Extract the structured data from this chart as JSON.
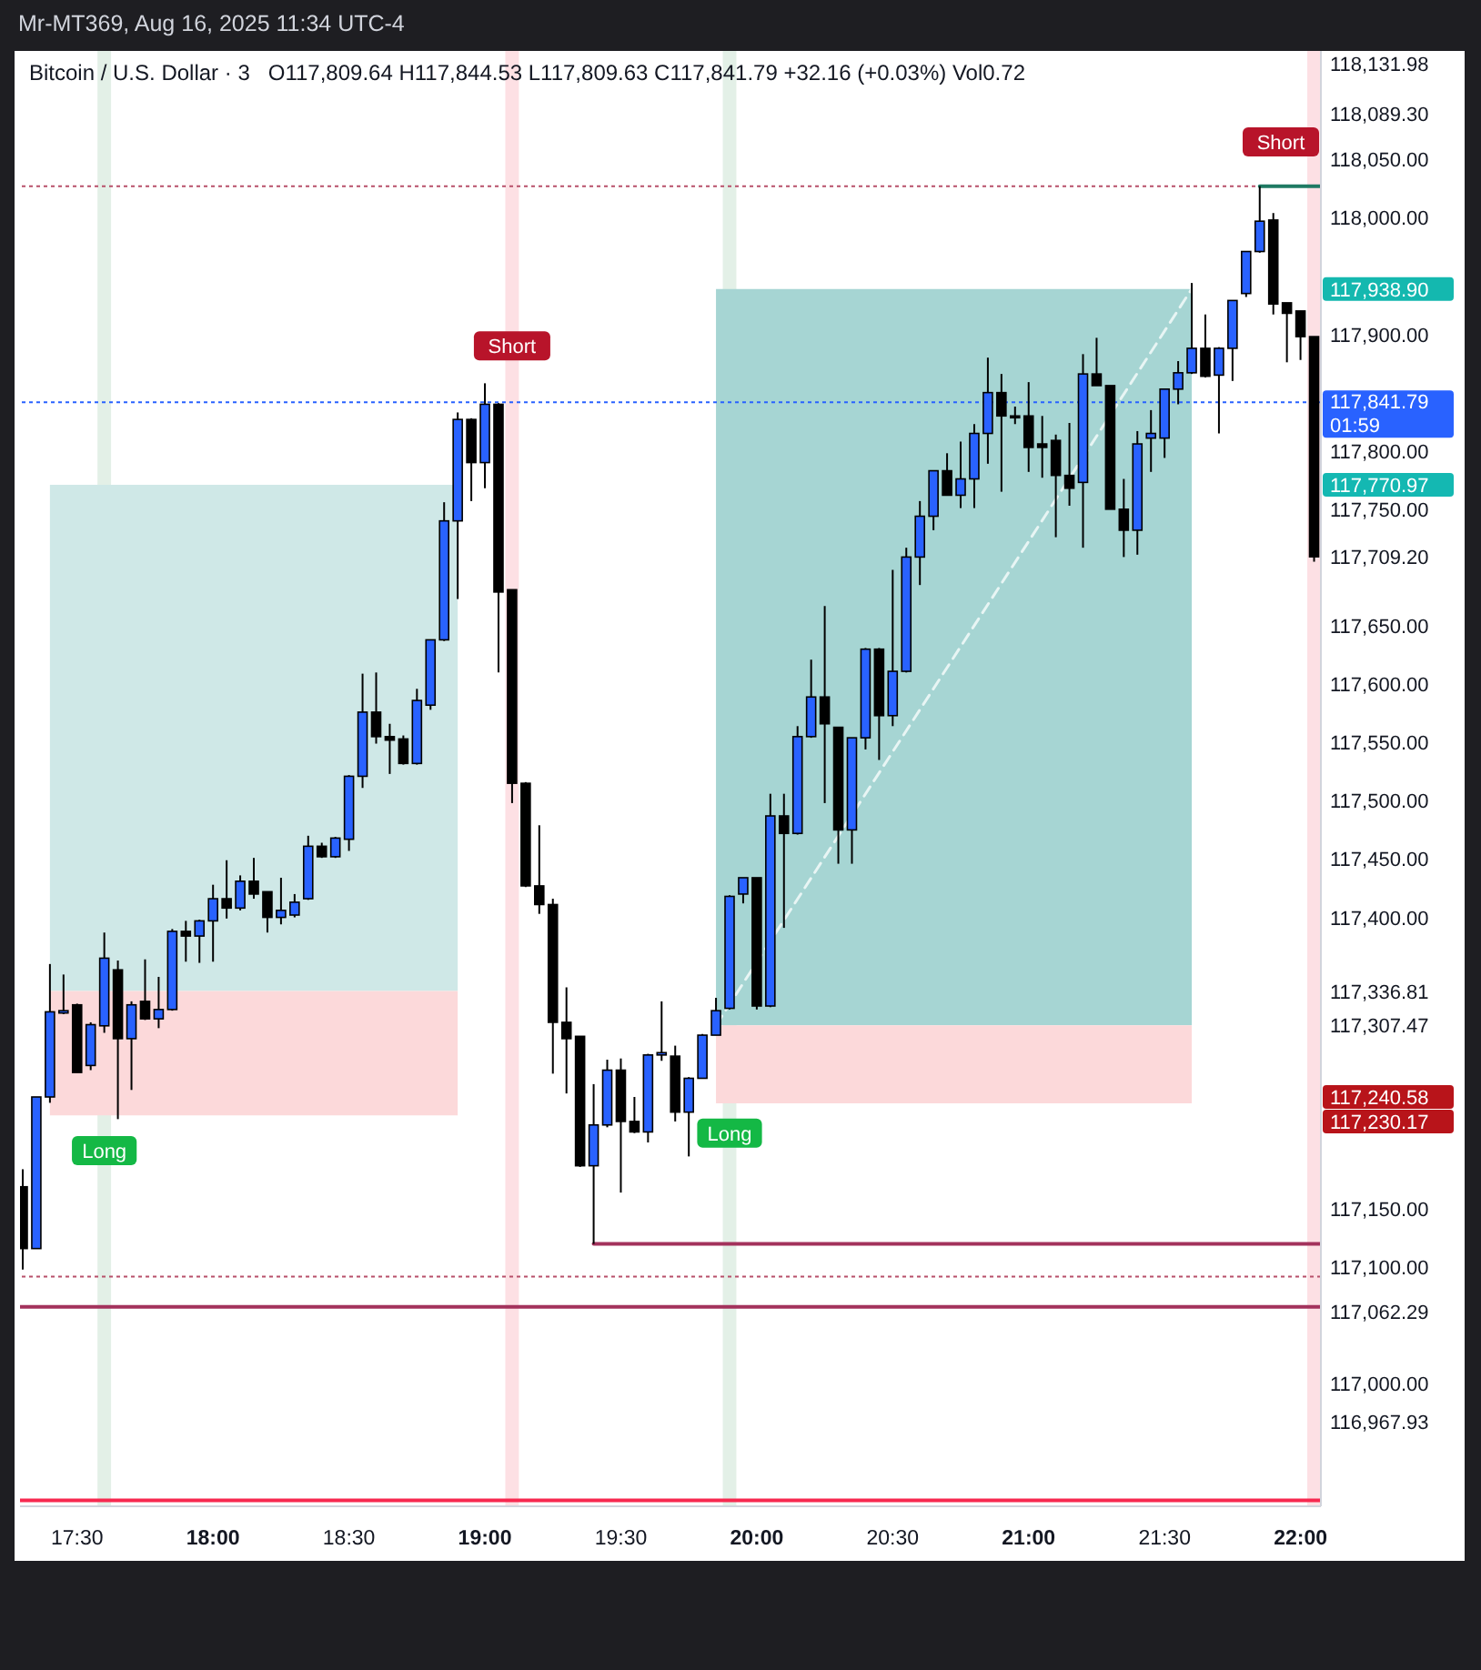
{
  "chart_data": {
    "type": "candlestick",
    "title": "Bitcoin / U.S. Dollar · 3",
    "subtitle": "O117,809.64 H117,844.53 L117,809.63 C117,841.79 +32.16 (+0.03%) Vol0.72",
    "x": [
      17.3,
      17.35,
      17.4,
      17.45,
      17.5,
      17.55,
      17.6,
      17.65,
      17.7,
      17.75,
      17.8,
      17.85,
      17.9,
      17.95,
      18,
      18.05,
      18.1,
      18.15,
      18.2,
      18.25,
      18.3,
      18.35,
      18.4,
      18.45,
      18.5,
      18.55,
      18.6,
      18.65,
      18.7,
      18.75,
      18.8,
      18.85,
      18.9,
      18.95,
      19,
      19.05,
      19.1,
      19.15,
      19.2,
      19.25,
      19.3,
      19.35,
      19.4,
      19.45,
      19.5,
      19.55,
      19.6,
      19.65,
      19.7,
      19.75,
      19.8,
      19.85,
      19.9,
      19.95,
      20,
      20.05,
      20.1,
      20.15,
      20.2,
      20.25,
      20.3,
      20.35,
      20.4,
      20.45,
      20.5,
      20.55,
      20.6,
      20.65,
      20.7,
      20.75,
      20.8,
      20.85,
      20.9,
      20.95,
      21,
      21.05,
      21.1,
      21.15,
      21.2,
      21.25,
      21.3,
      21.35,
      21.4,
      21.45,
      21.5,
      21.55,
      21.6,
      21.65,
      21.7,
      21.75,
      21.8,
      21.85,
      21.9,
      21.95,
      22,
      22.05
    ],
    "ohlc": [
      [
        117169,
        117184,
        117098,
        117116
      ],
      [
        117116,
        117246,
        117116,
        117246
      ],
      [
        117246,
        117360,
        117241,
        117319
      ],
      [
        117318,
        117351,
        117317,
        117320
      ],
      [
        117325,
        117326,
        117267,
        117267
      ],
      [
        117273,
        117310,
        117269,
        117308
      ],
      [
        117307,
        117387,
        117301,
        117365
      ],
      [
        117355,
        117363,
        117227,
        117296
      ],
      [
        117296,
        117328,
        117252,
        117325
      ],
      [
        117328,
        117364,
        117312,
        117313
      ],
      [
        117313,
        117349,
        117305,
        117321
      ],
      [
        117321,
        117390,
        117320,
        117388
      ],
      [
        117388,
        117397,
        117362,
        117384
      ],
      [
        117384,
        117398,
        117361,
        117397
      ],
      [
        117397,
        117428,
        117362,
        117416
      ],
      [
        117416,
        117449,
        117399,
        117408
      ],
      [
        117408,
        117436,
        117406,
        117431
      ],
      [
        117431,
        117451,
        117416,
        117420
      ],
      [
        117422,
        117422,
        117387,
        117400
      ],
      [
        117400,
        117434,
        117394,
        117406
      ],
      [
        117402,
        117420,
        117400,
        117413
      ],
      [
        117416,
        117470,
        117415,
        117461
      ],
      [
        117461,
        117464,
        117451,
        117452
      ],
      [
        117452,
        117469,
        117451,
        117468
      ],
      [
        117467,
        117522,
        117457,
        117521
      ],
      [
        117521,
        117609,
        117511,
        117576
      ],
      [
        117576,
        117610,
        117549,
        117555
      ],
      [
        117555,
        117566,
        117523,
        117552
      ],
      [
        117553,
        117556,
        117531,
        117532
      ],
      [
        117532,
        117596,
        117531,
        117586
      ],
      [
        117582,
        117638,
        117578,
        117638
      ],
      [
        117638,
        117756,
        117637,
        117740
      ],
      [
        117740,
        117833,
        117673,
        117827
      ],
      [
        117827,
        117828,
        117757,
        117790
      ],
      [
        117790,
        117858,
        117768,
        117840
      ],
      [
        117840,
        117841,
        117610,
        117679
      ],
      [
        117681,
        117681,
        117498,
        117515
      ],
      [
        117515,
        117516,
        117426,
        117427
      ],
      [
        117427,
        117479,
        117403,
        117411
      ],
      [
        117411,
        117416,
        117266,
        117310
      ],
      [
        117310,
        117340,
        117249,
        117296
      ],
      [
        117298,
        117298,
        117186,
        117187
      ],
      [
        117187,
        117257,
        117120,
        117222
      ],
      [
        117222,
        117278,
        117220,
        117269
      ],
      [
        117269,
        117279,
        117164,
        117225
      ],
      [
        117225,
        117246,
        117215,
        117216
      ],
      [
        117216,
        117283,
        117207,
        117282
      ],
      [
        117282,
        117328,
        117277,
        117284
      ],
      [
        117281,
        117290,
        117225,
        117233
      ],
      [
        117233,
        117263,
        117195,
        117262
      ],
      [
        117262,
        117300,
        117262,
        117299
      ],
      [
        117299,
        117331,
        117299,
        117320
      ],
      [
        117322,
        117419,
        117321,
        117418
      ],
      [
        117420,
        117434,
        117412,
        117434
      ],
      [
        117434,
        117434,
        117321,
        117324
      ],
      [
        117324,
        117506,
        117323,
        117487
      ],
      [
        117487,
        117506,
        117391,
        117472
      ],
      [
        117472,
        117564,
        117471,
        117555
      ],
      [
        117555,
        117621,
        117554,
        117589
      ],
      [
        117589,
        117667,
        117498,
        117566
      ],
      [
        117563,
        117563,
        117446,
        117475
      ],
      [
        117475,
        117554,
        117446,
        117554
      ],
      [
        117554,
        117631,
        117544,
        117630
      ],
      [
        117630,
        117631,
        117535,
        117573
      ],
      [
        117573,
        117698,
        117564,
        117611
      ],
      [
        117611,
        117717,
        117610,
        117709
      ],
      [
        117709,
        117757,
        117685,
        117744
      ],
      [
        117744,
        117783,
        117732,
        117783
      ],
      [
        117783,
        117798,
        117762,
        117762
      ],
      [
        117762,
        117808,
        117751,
        117776
      ],
      [
        117776,
        117823,
        117751,
        117815
      ],
      [
        117815,
        117880,
        117789,
        117850
      ],
      [
        117850,
        117866,
        117765,
        117830
      ],
      [
        117830,
        117838,
        117823,
        117829
      ],
      [
        117830,
        117859,
        117782,
        117803
      ],
      [
        117806,
        117830,
        117777,
        117803
      ],
      [
        117809,
        117814,
        117726,
        117779
      ],
      [
        117779,
        117824,
        117753,
        117768
      ],
      [
        117773,
        117883,
        117717,
        117866
      ],
      [
        117866,
        117897,
        117856,
        117856
      ],
      [
        117856,
        117856,
        117750,
        117750
      ],
      [
        117750,
        117776,
        117709,
        117732
      ],
      [
        117732,
        117817,
        117711,
        117806
      ],
      [
        117811,
        117835,
        117782,
        117815
      ],
      [
        117811,
        117853,
        117794,
        117853
      ],
      [
        117853,
        117877,
        117840,
        117867
      ],
      [
        117867,
        117944,
        117866,
        117888
      ],
      [
        117888,
        117917,
        117863,
        117864
      ],
      [
        117865,
        117889,
        117815,
        117888
      ],
      [
        117888,
        117929,
        117860,
        117929
      ],
      [
        117935,
        117971,
        117932,
        117971
      ],
      [
        117971,
        118027,
        117970,
        117997
      ],
      [
        117998,
        118004,
        117917,
        117926
      ],
      [
        117927,
        117927,
        117876,
        117918
      ],
      [
        117920,
        117920,
        117878,
        117898
      ],
      [
        117898,
        117898,
        117705,
        117709.2
      ]
    ],
    "colors": [
      "#000000",
      "#2962ff",
      "#2962ff",
      "#2962ff",
      "#000000",
      "#2962ff",
      "#2962ff",
      "#000000",
      "#2962ff",
      "#000000",
      "#2962ff",
      "#2962ff",
      "#000000",
      "#2962ff",
      "#2962ff",
      "#000000",
      "#2962ff",
      "#000000",
      "#000000",
      "#2962ff",
      "#2962ff",
      "#2962ff",
      "#000000",
      "#2962ff",
      "#2962ff",
      "#2962ff",
      "#000000",
      "#000000",
      "#000000",
      "#2962ff",
      "#2962ff",
      "#2962ff",
      "#2962ff",
      "#000000",
      "#2962ff",
      "#000000",
      "#000000",
      "#000000",
      "#000000",
      "#000000",
      "#000000",
      "#000000",
      "#2962ff",
      "#2962ff",
      "#000000",
      "#000000",
      "#2962ff",
      "#2962ff",
      "#000000",
      "#2962ff",
      "#2962ff",
      "#2962ff",
      "#2962ff",
      "#2962ff",
      "#000000",
      "#2962ff",
      "#000000",
      "#2962ff",
      "#2962ff",
      "#000000",
      "#000000",
      "#2962ff",
      "#2962ff",
      "#000000",
      "#2962ff",
      "#2962ff",
      "#2962ff",
      "#2962ff",
      "#000000",
      "#2962ff",
      "#2962ff",
      "#2962ff",
      "#000000",
      "#000000",
      "#000000",
      "#000000",
      "#000000",
      "#000000",
      "#2962ff",
      "#000000",
      "#000000",
      "#000000",
      "#2962ff",
      "#2962ff",
      "#2962ff",
      "#2962ff",
      "#2962ff",
      "#000000",
      "#2962ff",
      "#2962ff",
      "#2962ff",
      "#2962ff",
      "#000000",
      "#000000",
      "#000000",
      "#000000"
    ],
    "xlim": [
      17.29,
      22.075
    ],
    "ylim": [
      116895,
      118143
    ],
    "xticks": [
      {
        "value": 17.5,
        "label": "17:30"
      },
      {
        "value": 18,
        "label": "18:00"
      },
      {
        "value": 18.5,
        "label": "18:30"
      },
      {
        "value": 19,
        "label": "19:00"
      },
      {
        "value": 19.5,
        "label": "19:30"
      },
      {
        "value": 20,
        "label": "20:00"
      },
      {
        "value": 20.5,
        "label": "20:30"
      },
      {
        "value": 21,
        "label": "21:00"
      },
      {
        "value": 21.5,
        "label": "21:30"
      },
      {
        "value": 22,
        "label": "22:00"
      }
    ],
    "yticks": [
      {
        "value": 116967.93,
        "label": "116,967.93"
      },
      {
        "value": 117000,
        "label": "117,000.00"
      },
      {
        "value": 117062.29,
        "label": "117,062.29"
      },
      {
        "value": 117100,
        "label": "117,100.00"
      },
      {
        "value": 117150,
        "label": "117,150.00"
      },
      {
        "value": 117230.17,
        "label": "117,230.17"
      },
      {
        "value": 117240.58,
        "label": "117,240.58"
      },
      {
        "value": 117307.47,
        "label": "117,307.47"
      },
      {
        "value": 117336.81,
        "label": "117,336.81"
      },
      {
        "value": 117400,
        "label": "117,400.00"
      },
      {
        "value": 117450,
        "label": "117,450.00"
      },
      {
        "value": 117500,
        "label": "117,500.00"
      },
      {
        "value": 117550,
        "label": "117,550.00"
      },
      {
        "value": 117600,
        "label": "117,600.00"
      },
      {
        "value": 117650,
        "label": "117,650.00"
      },
      {
        "value": 117709.2,
        "label": "117,709.20"
      },
      {
        "value": 117750,
        "label": "117,750.00"
      },
      {
        "value": 117770.97,
        "label": "117,770.97"
      },
      {
        "value": 117800,
        "label": "117,800.00"
      },
      {
        "value": 117900,
        "label": "117,900.00"
      },
      {
        "value": 117938.9,
        "label": "117,938.90"
      },
      {
        "value": 118000,
        "label": "118,000.00"
      },
      {
        "value": 118050,
        "label": "118,050.00"
      },
      {
        "value": 118089.3,
        "label": "118,089.30"
      },
      {
        "value": 118131.98,
        "label": "118,131.98"
      }
    ],
    "series": [
      {
        "type": "area",
        "color": "#cfe8e7",
        "x": [
          17.4,
          18.9
        ],
        "values": [
          null,
          null
        ],
        "lower": [
          117336.81,
          117336.81
        ],
        "upper": [
          117770.97,
          117770.97
        ]
      },
      {
        "type": "area",
        "color": "#fcd9da",
        "x": [
          17.4,
          18.9
        ],
        "values": [
          null,
          null
        ],
        "lower": [
          117230.17,
          117230.17
        ],
        "upper": [
          117336.81,
          117336.81
        ]
      },
      {
        "type": "area",
        "color": "#a6d5d3",
        "x": [
          19.85,
          21.6
        ],
        "values": [
          null,
          null
        ],
        "lower": [
          117307.47,
          117307.47
        ],
        "upper": [
          117938.9,
          117938.9
        ]
      },
      {
        "type": "area",
        "color": "#fcd9da",
        "x": [
          19.85,
          21.6
        ],
        "values": [
          null,
          null
        ],
        "lower": [
          117240.58,
          117240.58
        ],
        "upper": [
          117307.47,
          117307.47
        ]
      },
      {
        "type": "line",
        "color": "#e8f5f4",
        "line_style": "dashed",
        "x": [
          19.85,
          21.6
        ],
        "values": [
          117307.47,
          117938.9
        ]
      },
      {
        "type": "line",
        "color": "#1f7a63",
        "x": [
          21.85,
          22.075
        ],
        "values": [
          118027,
          118027
        ]
      },
      {
        "type": "line",
        "color": "#a3325c",
        "x": [
          19.4,
          22.075
        ],
        "values": [
          117120,
          117120
        ]
      }
    ],
    "ref_lines": [
      {
        "axis": "y",
        "value": 118027,
        "color": "#b8506a",
        "line_style": "dotted"
      },
      {
        "axis": "y",
        "value": 117841.79,
        "label": "117,841.79\n01:59",
        "color": "#2962ff",
        "line_style": "dotted"
      },
      {
        "axis": "y",
        "value": 117092,
        "color": "#b8506a",
        "line_style": "dotted"
      },
      {
        "axis": "y",
        "value": 117066,
        "color": "#a3325c"
      },
      {
        "axis": "y",
        "value": 116900,
        "color": "#f7284f"
      }
    ],
    "bands": [
      {
        "axis": "x",
        "from": 17.575,
        "to": 17.625,
        "color": "#e3f0e7"
      },
      {
        "axis": "x",
        "from": 19.075,
        "to": 19.125,
        "color": "#fde0e4"
      },
      {
        "axis": "x",
        "from": 19.875,
        "to": 19.925,
        "color": "#e3f0e7"
      },
      {
        "axis": "x",
        "from": 22.025,
        "to": 22.075,
        "color": "#fde0e4"
      }
    ],
    "annotations": [
      "Mr-MT369, Aug 16, 2025 11:34 UTC-4",
      {
        "text": "Long",
        "x": 17.6,
        "y": 117200
      },
      {
        "text": "Short",
        "x": 19.1,
        "y": 117890
      },
      {
        "text": "Long",
        "x": 19.9,
        "y": 117215
      },
      {
        "text": "Short",
        "x": 22.05,
        "y": 118065
      }
    ]
  }
}
